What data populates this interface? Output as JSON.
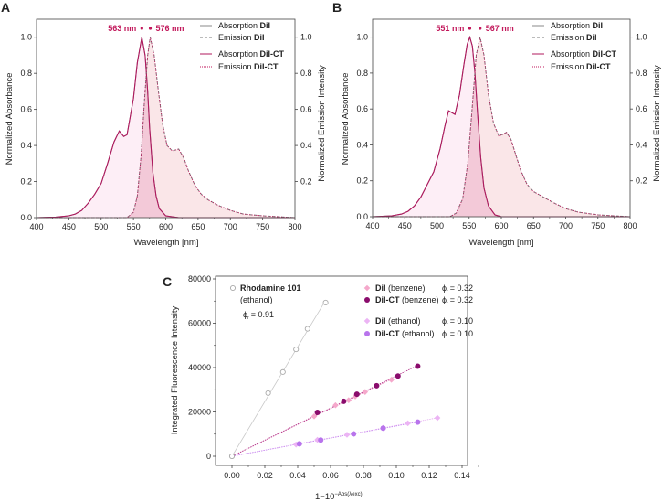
{
  "colors": {
    "absorption": "#b0185e",
    "emission": "#c0185e",
    "dii": "#777777",
    "abs_fill": "#fdeef6",
    "em_fill": "#f9e3e6",
    "overlap_fill": "#f3c9d8"
  },
  "chart_data": [
    {
      "type": "line",
      "panel": "A",
      "xlabel": "Wavelength [nm]",
      "ylabel": "Normalized Absorbance",
      "ylabel_right": "Normalized Emission Intensity",
      "xlim": [
        400,
        800
      ],
      "ylim": [
        0,
        1.1
      ],
      "xticks": [
        400,
        450,
        500,
        550,
        600,
        650,
        700,
        750,
        800
      ],
      "yticks": [
        "0.0",
        "0.2",
        "0.4",
        "0.6",
        "0.8",
        "1.0"
      ],
      "yticks_right": [
        "0.2",
        "0.4",
        "0.6",
        "0.8",
        "1.0"
      ],
      "peaks": {
        "absorption": "563 nm",
        "emission": "576 nm",
        "abs_x": 563,
        "em_x": 576
      },
      "legend": [
        {
          "pre": "Absorption ",
          "bold": "DiI",
          "style": "solid-grey"
        },
        {
          "pre": "Emission ",
          "bold": "DiI",
          "style": "dashed-grey"
        },
        {
          "pre": "Absorption ",
          "bold": "DiI-CT",
          "style": "solid-pink"
        },
        {
          "pre": "Emission ",
          "bold": "DiI-CT",
          "style": "dotted-pink"
        }
      ],
      "absorption": {
        "x": [
          400,
          430,
          450,
          460,
          470,
          480,
          490,
          500,
          510,
          520,
          528,
          535,
          540,
          550,
          556,
          563,
          568,
          572,
          575,
          580,
          585,
          590,
          600,
          620,
          800
        ],
        "y": [
          0,
          0.003,
          0.01,
          0.02,
          0.04,
          0.08,
          0.13,
          0.19,
          0.3,
          0.42,
          0.48,
          0.45,
          0.46,
          0.66,
          0.86,
          1.0,
          0.9,
          0.7,
          0.5,
          0.25,
          0.12,
          0.05,
          0.01,
          0,
          0
        ]
      },
      "emission": {
        "x": [
          400,
          540,
          550,
          556,
          562,
          567,
          572,
          576,
          582,
          588,
          595,
          602,
          610,
          620,
          628,
          635,
          645,
          655,
          665,
          680,
          700,
          720,
          750,
          780,
          800
        ],
        "y": [
          0,
          0,
          0.03,
          0.12,
          0.35,
          0.65,
          0.9,
          1.0,
          0.9,
          0.72,
          0.52,
          0.4,
          0.37,
          0.38,
          0.33,
          0.26,
          0.18,
          0.13,
          0.1,
          0.07,
          0.04,
          0.02,
          0.01,
          0.004,
          0
        ]
      }
    },
    {
      "type": "line",
      "panel": "B",
      "xlabel": "Wavelength [nm]",
      "ylabel": "Normalized Absorbance",
      "ylabel_right": "Normalized Emission Intensity",
      "xlim": [
        400,
        800
      ],
      "ylim": [
        0,
        1.1
      ],
      "xticks": [
        400,
        450,
        500,
        550,
        600,
        650,
        700,
        750,
        800
      ],
      "yticks": [
        "0.0",
        "0.2",
        "0.4",
        "0.6",
        "0.8",
        "1.0"
      ],
      "yticks_right": [
        "0.2",
        "0.4",
        "0.6",
        "0.8",
        "1.0"
      ],
      "peaks": {
        "absorption": "551 nm",
        "emission": "567 nm",
        "abs_x": 551,
        "em_x": 567
      },
      "legend": [
        {
          "pre": "Absorption ",
          "bold": "DiI",
          "style": "solid-grey"
        },
        {
          "pre": "Emission ",
          "bold": "DiI",
          "style": "dashed-grey"
        },
        {
          "pre": "Absorption ",
          "bold": "DiI-CT",
          "style": "solid-pink"
        },
        {
          "pre": "Emission ",
          "bold": "DiI-CT",
          "style": "dotted-pink"
        }
      ],
      "absorption": {
        "x": [
          400,
          430,
          445,
          455,
          465,
          475,
          485,
          495,
          505,
          512,
          518,
          523,
          528,
          535,
          542,
          547,
          551,
          555,
          559,
          563,
          568,
          573,
          580,
          590,
          600,
          800
        ],
        "y": [
          0,
          0.005,
          0.015,
          0.03,
          0.06,
          0.11,
          0.18,
          0.25,
          0.38,
          0.5,
          0.59,
          0.58,
          0.57,
          0.68,
          0.85,
          0.96,
          1.0,
          0.95,
          0.8,
          0.58,
          0.33,
          0.16,
          0.06,
          0.01,
          0,
          0
        ]
      },
      "emission": {
        "x": [
          400,
          520,
          530,
          540,
          548,
          555,
          561,
          567,
          573,
          580,
          588,
          596,
          603,
          608,
          615,
          622,
          630,
          640,
          650,
          665,
          680,
          700,
          720,
          750,
          800
        ],
        "y": [
          0,
          0,
          0.02,
          0.1,
          0.3,
          0.62,
          0.9,
          1.0,
          0.9,
          0.68,
          0.52,
          0.45,
          0.46,
          0.47,
          0.43,
          0.35,
          0.26,
          0.18,
          0.14,
          0.11,
          0.08,
          0.045,
          0.025,
          0.01,
          0
        ]
      }
    },
    {
      "type": "scatter",
      "panel": "C",
      "xlabel": "1−10",
      "xlabel_sup": "−Abs(λexc)",
      "ylabel": "Integrated Fluorescence Intensity",
      "xlim": [
        -0.01,
        0.145
      ],
      "ylim": [
        -7000,
        81000
      ],
      "xticks": [
        "0.00",
        "0.02",
        "0.04",
        "0.06",
        "0.08",
        "0.10",
        "0.12",
        "0.14"
      ],
      "yticks": [
        0,
        20000,
        40000,
        60000,
        80000
      ],
      "series": [
        {
          "name": "Rhodamine 101",
          "sub": "(ethanol)",
          "phi": "= 0.91",
          "marker": "open-circle",
          "color": "#aaaaaa",
          "line": "#c8c8c8",
          "x": [
            0,
            0.022,
            0.031,
            0.039,
            0.046,
            0.057
          ],
          "y": [
            0,
            28500,
            38000,
            48200,
            57500,
            69300
          ],
          "fit_end": 0.057
        },
        {
          "name": "DiI",
          "solvent": " (benzene)",
          "phi": "= 0.32",
          "marker": "diamond",
          "color": "#f5a8cb",
          "line": "#e07bb0",
          "x": [
            0.05,
            0.063,
            0.071,
            0.075,
            0.081,
            0.097
          ],
          "y": [
            18000,
            23000,
            25300,
            27000,
            29000,
            34500
          ],
          "fit_end": 0.097
        },
        {
          "name": "DiI-CT",
          "solvent": " (benzene)",
          "phi": "= 0.32",
          "marker": "circle",
          "color": "#8a0c6c",
          "line": "#b02c86",
          "x": [
            0.052,
            0.068,
            0.076,
            0.088,
            0.101,
            0.113
          ],
          "y": [
            19800,
            24800,
            28000,
            31800,
            36200,
            40600
          ],
          "fit_end": 0.113
        },
        {
          "name": "DiI",
          "solvent": " (ethanol)",
          "phi": "= 0.10",
          "marker": "diamond",
          "color": "#ecb4f4",
          "line": "#e3a8f0",
          "x": [
            0.039,
            0.052,
            0.07,
            0.092,
            0.107,
            0.125
          ],
          "y": [
            5300,
            7400,
            9700,
            12800,
            14900,
            17300
          ],
          "fit_end": 0.125
        },
        {
          "name": "DiI-CT",
          "solvent": " (ethanol)",
          "phi": "= 0.10",
          "marker": "circle",
          "color": "#b874ec",
          "line": "#c88cf0",
          "x": [
            0.041,
            0.054,
            0.074,
            0.092,
            0.113
          ],
          "y": [
            5600,
            7300,
            10100,
            12700,
            15400
          ],
          "fit_end": 0.113
        }
      ]
    }
  ]
}
